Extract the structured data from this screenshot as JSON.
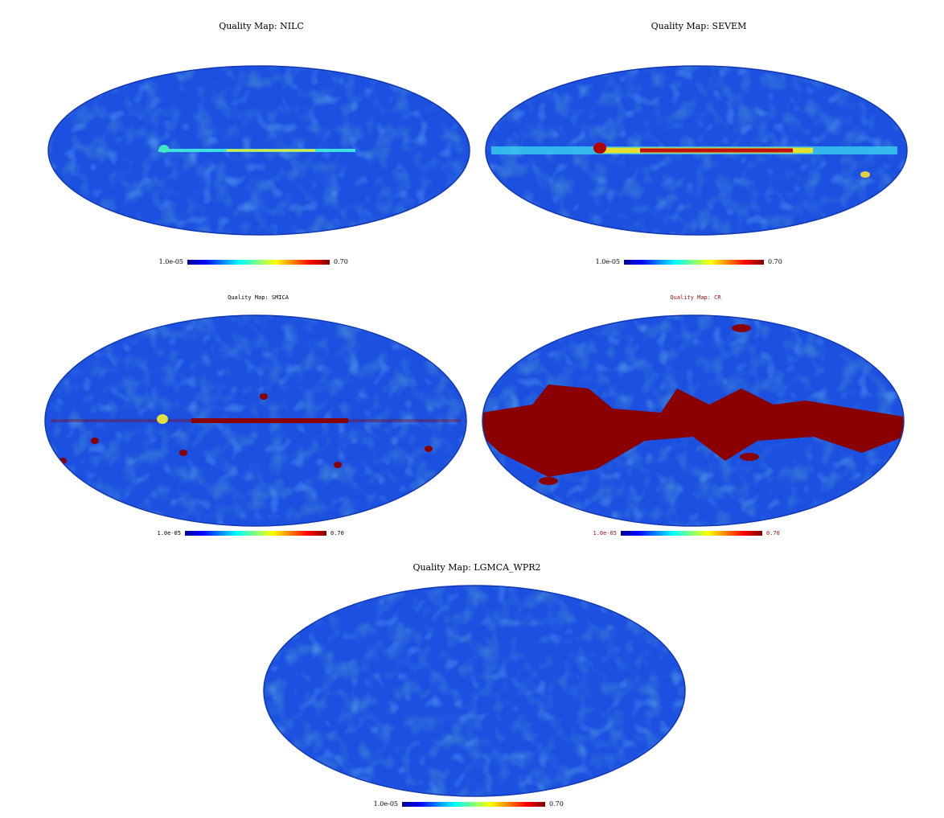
{
  "chart_data": [
    {
      "type": "map",
      "title": "Quality Map: NILC",
      "clim": [
        {
          "value": 1e-05,
          "label": "1.0e-05"
        },
        {
          "value": 0.7,
          "label": "0.70"
        }
      ]
    },
    {
      "type": "map",
      "title": "Quality Map: SEVEM",
      "clim": [
        {
          "value": 1e-05,
          "label": "1.0e-05"
        },
        {
          "value": 0.7,
          "label": "0.70"
        }
      ]
    },
    {
      "type": "map",
      "title": "Quality Map: SMICA",
      "clim": [
        {
          "value": 1e-05,
          "label": "1.0e-05"
        },
        {
          "value": 0.7,
          "label": "0.70"
        }
      ]
    },
    {
      "type": "map",
      "title": "Quality Map: CR",
      "text_color": "#a01010",
      "clim": [
        {
          "value": 1e-05,
          "label": "1.0e-05"
        },
        {
          "value": 0.7,
          "label": "0.70"
        }
      ]
    },
    {
      "type": "map",
      "title": "Quality Map: LGMCA_WPR2",
      "clim": [
        {
          "value": 1e-05,
          "label": "1.0e-05"
        },
        {
          "value": 0.7,
          "label": "0.70"
        }
      ]
    }
  ]
}
